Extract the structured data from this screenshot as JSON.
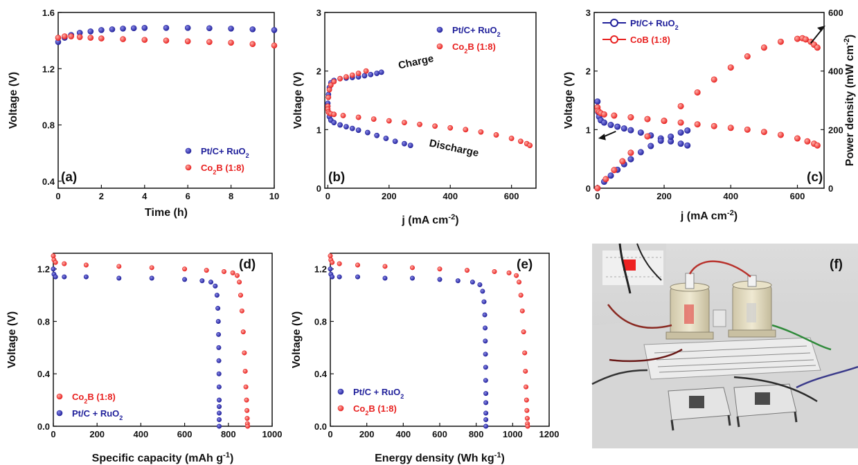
{
  "colors": {
    "blue": "#1f1f9a",
    "red": "#e8201f",
    "axis": "#111111"
  },
  "chart_data": [
    {
      "id": "a",
      "type": "scatter",
      "panel_label": "(a)",
      "xlabel": "Time (h)",
      "ylabel": "Voltage (V)",
      "xlim": [
        0,
        10
      ],
      "ylim": [
        0.35,
        1.6
      ],
      "xticks": [
        0,
        2,
        4,
        6,
        8,
        10
      ],
      "xtick_labels": [
        "0",
        "2",
        "4",
        "6",
        "8",
        "10"
      ],
      "yticks": [
        0.4,
        0.8,
        1.2,
        1.6
      ],
      "ytick_labels": [
        "0.4",
        "0.8",
        "1.2",
        "1.6"
      ],
      "legend_position": "bottom-right",
      "series": [
        {
          "name": "Pt/C+ RuO",
          "name_sub": "2",
          "name_tail": "",
          "color": "blue",
          "x": [
            0,
            0.3,
            0.6,
            1,
            1.5,
            2,
            2.5,
            3,
            3.5,
            4,
            5,
            6,
            7,
            8,
            9,
            10
          ],
          "y": [
            1.39,
            1.42,
            1.44,
            1.455,
            1.465,
            1.475,
            1.48,
            1.485,
            1.488,
            1.49,
            1.49,
            1.49,
            1.488,
            1.485,
            1.48,
            1.475
          ]
        },
        {
          "name": "Co",
          "name_sub": "2",
          "name_tail": "B (1:8)",
          "color": "red",
          "x": [
            0,
            0.3,
            0.6,
            1,
            1.5,
            2,
            3,
            4,
            5,
            6,
            7,
            8,
            9,
            10
          ],
          "y": [
            1.42,
            1.43,
            1.43,
            1.425,
            1.42,
            1.415,
            1.41,
            1.405,
            1.4,
            1.395,
            1.39,
            1.385,
            1.375,
            1.365
          ]
        }
      ]
    },
    {
      "id": "b",
      "type": "scatter",
      "panel_label": "(b)",
      "xlabel": "j (mA cm",
      "xlabel_sup": "-2",
      "xlabel_tail": ")",
      "ylabel": "Voltage (V)",
      "xlim": [
        -10,
        680
      ],
      "ylim": [
        0,
        3
      ],
      "xticks": [
        0,
        200,
        400,
        600
      ],
      "xtick_labels": [
        "0",
        "200",
        "400",
        "600"
      ],
      "yticks": [
        0,
        1,
        2,
        3
      ],
      "ytick_labels": [
        "0",
        "1",
        "2",
        "3"
      ],
      "legend_position": "top-right",
      "annotations": [
        {
          "text": "Charge",
          "x": 290,
          "y": 2.1,
          "rotate": -12
        },
        {
          "text": "Discharge",
          "x": 410,
          "y": 0.63,
          "rotate": 12
        }
      ],
      "series": [
        {
          "name": "Pt/C+ RuO",
          "name_sub": "2",
          "name_tail": "",
          "color": "blue",
          "x": [
            0,
            2,
            5,
            10,
            20,
            40,
            60,
            80,
            100,
            120,
            140,
            160,
            175,
            0,
            2,
            5,
            10,
            20,
            40,
            60,
            80,
            100,
            130,
            160,
            190,
            220,
            250,
            270
          ],
          "y": [
            1.45,
            1.6,
            1.72,
            1.8,
            1.84,
            1.87,
            1.88,
            1.89,
            1.9,
            1.92,
            1.94,
            1.96,
            1.98,
            1.4,
            1.3,
            1.22,
            1.16,
            1.12,
            1.08,
            1.05,
            1.02,
            0.99,
            0.95,
            0.9,
            0.85,
            0.8,
            0.76,
            0.73
          ]
        },
        {
          "name": "Co",
          "name_sub": "2",
          "name_tail": "B (1:8)",
          "color": "red",
          "x": [
            0,
            2,
            5,
            10,
            20,
            40,
            60,
            80,
            100,
            125,
            0,
            2,
            5,
            10,
            20,
            50,
            100,
            150,
            200,
            250,
            300,
            350,
            400,
            450,
            500,
            550,
            600,
            630,
            650,
            660
          ],
          "y": [
            1.4,
            1.55,
            1.68,
            1.76,
            1.82,
            1.87,
            1.9,
            1.93,
            1.96,
            2.0,
            1.35,
            1.3,
            1.28,
            1.27,
            1.26,
            1.24,
            1.21,
            1.18,
            1.15,
            1.12,
            1.09,
            1.06,
            1.03,
            1.0,
            0.96,
            0.91,
            0.85,
            0.8,
            0.76,
            0.73
          ]
        }
      ]
    },
    {
      "id": "c",
      "type": "scatter",
      "panel_label": "(c)",
      "xlabel": "j (mA cm",
      "xlabel_sup": "-2",
      "xlabel_tail": ")",
      "ylabel": "Voltage (V)",
      "ylabel_right": "Power density (mW cm",
      "ylabel_right_sup": "-2",
      "ylabel_right_tail": ")",
      "xlim": [
        -10,
        680
      ],
      "ylim": [
        0,
        3
      ],
      "ylim_right": [
        0,
        600
      ],
      "xticks": [
        0,
        200,
        400,
        600
      ],
      "xtick_labels": [
        "0",
        "200",
        "400",
        "600"
      ],
      "yticks": [
        0,
        1,
        2,
        3
      ],
      "ytick_labels": [
        "0",
        "1",
        "2",
        "3"
      ],
      "yticks_right": [
        0,
        200,
        400,
        600
      ],
      "ytick_labels_right": [
        "0",
        "200",
        "400",
        "600"
      ],
      "legend_position": "top-left",
      "series": [
        {
          "name": "Pt/C+ RuO",
          "name_sub": "2",
          "name_tail": "",
          "color": "blue",
          "axis": "left",
          "x": [
            0,
            2,
            5,
            10,
            20,
            40,
            60,
            80,
            100,
            130,
            160,
            190,
            220,
            250,
            270
          ],
          "y": [
            1.48,
            1.3,
            1.22,
            1.16,
            1.12,
            1.08,
            1.05,
            1.02,
            0.99,
            0.95,
            0.9,
            0.85,
            0.8,
            0.76,
            0.73
          ]
        },
        {
          "name": "Pt/C+ RuO power",
          "color": "blue",
          "axis": "right",
          "x": [
            0,
            20,
            40,
            60,
            80,
            100,
            130,
            160,
            190,
            220,
            250,
            270
          ],
          "y": [
            0,
            22,
            43,
            63,
            82,
            99,
            123,
            144,
            162,
            176,
            190,
            197
          ]
        },
        {
          "name": "CoB (1:8)",
          "color": "red",
          "axis": "left",
          "x": [
            0,
            2,
            5,
            10,
            20,
            50,
            100,
            150,
            200,
            250,
            300,
            350,
            400,
            450,
            500,
            550,
            600,
            630,
            650,
            660
          ],
          "y": [
            1.38,
            1.32,
            1.3,
            1.28,
            1.26,
            1.24,
            1.21,
            1.18,
            1.15,
            1.12,
            1.09,
            1.06,
            1.03,
            1.0,
            0.96,
            0.91,
            0.85,
            0.8,
            0.76,
            0.73
          ]
        },
        {
          "name": "CoB (1:8) power",
          "color": "red",
          "axis": "right",
          "x": [
            0,
            25,
            50,
            75,
            100,
            150,
            200,
            250,
            300,
            350,
            400,
            450,
            500,
            550,
            600,
            615,
            625,
            640,
            650,
            660
          ],
          "y": [
            0,
            31,
            62,
            92,
            121,
            177,
            230,
            280,
            327,
            371,
            412,
            450,
            480,
            500,
            510,
            512,
            508,
            500,
            490,
            480
          ]
        }
      ]
    },
    {
      "id": "d",
      "type": "scatter",
      "panel_label": "(d)",
      "xlabel": "Specific capacity (mAh g",
      "xlabel_sup": "-1",
      "xlabel_tail": ")",
      "ylabel": "Voltage (V)",
      "xlim": [
        0,
        1000
      ],
      "ylim": [
        0,
        1.32
      ],
      "xticks": [
        0,
        200,
        400,
        600,
        800,
        1000
      ],
      "xtick_labels": [
        "0",
        "200",
        "400",
        "600",
        "800",
        "1000"
      ],
      "yticks": [
        0,
        0.4,
        0.8,
        1.2
      ],
      "ytick_labels": [
        "0.0",
        "0.4",
        "0.8",
        "1.2"
      ],
      "legend_position": "bottom-left",
      "series": [
        {
          "name": "Co",
          "name_sub": "2",
          "name_tail": "B (1:8)",
          "color": "red",
          "x": [
            0,
            3,
            10,
            50,
            150,
            300,
            450,
            600,
            700,
            780,
            820,
            840,
            850,
            856,
            862,
            868,
            873,
            877,
            880,
            883,
            885,
            886,
            887,
            888
          ],
          "y": [
            1.3,
            1.27,
            1.25,
            1.24,
            1.23,
            1.22,
            1.21,
            1.2,
            1.19,
            1.18,
            1.17,
            1.15,
            1.1,
            1.0,
            0.88,
            0.72,
            0.56,
            0.42,
            0.3,
            0.2,
            0.12,
            0.06,
            0.02,
            0.0
          ]
        },
        {
          "name": "Pt/C + RuO",
          "name_sub": "2",
          "name_tail": "",
          "color": "blue",
          "x": [
            0,
            3,
            10,
            50,
            150,
            300,
            450,
            600,
            680,
            720,
            740,
            748,
            752,
            754,
            755,
            756,
            756.5,
            757,
            757.5,
            758,
            758,
            758,
            758,
            758
          ],
          "y": [
            1.2,
            1.16,
            1.14,
            1.14,
            1.14,
            1.13,
            1.13,
            1.12,
            1.11,
            1.1,
            1.07,
            1.0,
            0.9,
            0.8,
            0.7,
            0.6,
            0.5,
            0.4,
            0.3,
            0.2,
            0.15,
            0.1,
            0.05,
            0.0
          ]
        }
      ]
    },
    {
      "id": "e",
      "type": "scatter",
      "panel_label": "(e)",
      "xlabel": "Energy density (Wh kg",
      "xlabel_sup": "-1",
      "xlabel_tail": ")",
      "ylabel": "Voltage (V)",
      "xlim": [
        0,
        1200
      ],
      "ylim": [
        0,
        1.32
      ],
      "xticks": [
        0,
        200,
        400,
        600,
        800,
        1000,
        1200
      ],
      "xtick_labels": [
        "0",
        "200",
        "400",
        "600",
        "800",
        "1000",
        "1200"
      ],
      "yticks": [
        0,
        0.4,
        0.8,
        1.2
      ],
      "ytick_labels": [
        "0.0",
        "0.4",
        "0.8",
        "1.2"
      ],
      "legend_position": "bottom-left",
      "series": [
        {
          "name": "Pt/C + RuO",
          "name_sub": "2",
          "name_tail": "",
          "color": "blue",
          "x": [
            0,
            3,
            10,
            50,
            150,
            300,
            450,
            600,
            700,
            780,
            820,
            835,
            843,
            847,
            849,
            850,
            851,
            852,
            852,
            853,
            853,
            853,
            853,
            853
          ],
          "y": [
            1.2,
            1.16,
            1.14,
            1.14,
            1.14,
            1.13,
            1.13,
            1.12,
            1.11,
            1.1,
            1.08,
            1.03,
            0.95,
            0.85,
            0.75,
            0.65,
            0.55,
            0.45,
            0.35,
            0.25,
            0.18,
            0.1,
            0.05,
            0.0
          ]
        },
        {
          "name": "Co",
          "name_sub": "2",
          "name_tail": "B (1:8)",
          "color": "red",
          "x": [
            0,
            3,
            10,
            50,
            150,
            300,
            450,
            600,
            750,
            900,
            980,
            1020,
            1035,
            1045,
            1053,
            1060,
            1066,
            1070,
            1073,
            1076,
            1078,
            1080,
            1081,
            1082
          ],
          "y": [
            1.3,
            1.27,
            1.25,
            1.24,
            1.23,
            1.22,
            1.21,
            1.2,
            1.19,
            1.18,
            1.17,
            1.15,
            1.1,
            1.0,
            0.88,
            0.72,
            0.56,
            0.42,
            0.3,
            0.2,
            0.12,
            0.06,
            0.02,
            0.0
          ]
        }
      ]
    }
  ],
  "photo": {
    "panel_label": "(f)"
  }
}
